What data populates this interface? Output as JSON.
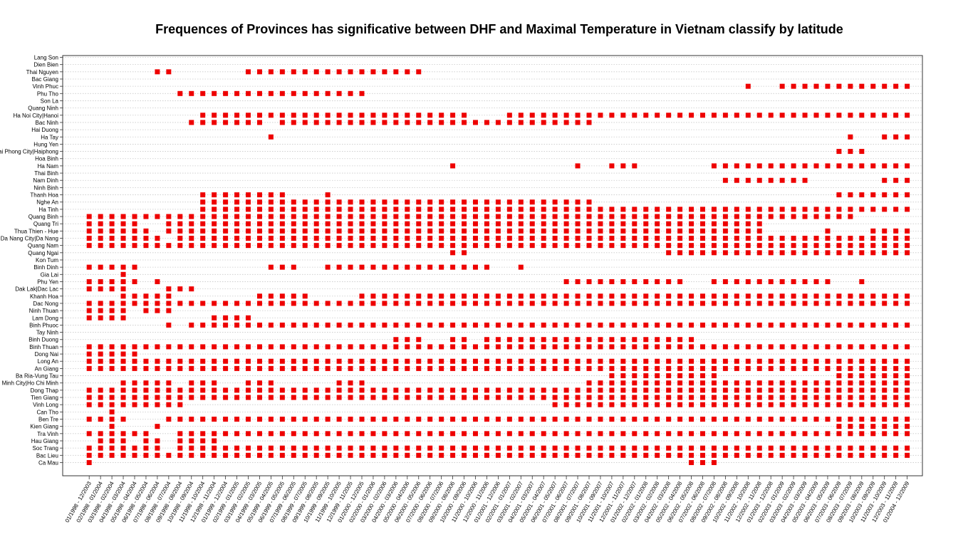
{
  "chart_data": {
    "type": "scatter",
    "title": "Frequences of Provinces has significative between DHF and Maximal Temperature in Vietnam classify by latitude",
    "xlabel": "",
    "ylabel": "",
    "marker_color": "#ee0000",
    "grid": "horizontal dotted",
    "provinces": [
      "Lang Son",
      "Dien Bien",
      "Thai Nguyen",
      "Bac Giang",
      "Vinh Phuc",
      "Phu Tho",
      "Son La",
      "Quang Ninh",
      "Ha Noi City|Hanoi",
      "Bac Ninh",
      "Hai Duong",
      "Ha Tay",
      "Hung Yen",
      "Hai Phong City|Haiphong",
      "Hoa Binh",
      "Ha Nam",
      "Thai Binh",
      "Nam Dinh",
      "Ninh Binh",
      "Thanh Hoa",
      "Nghe An",
      "Ha Tinh",
      "Quang Binh",
      "Quang Tri",
      "Thua Thien - Hue",
      "Da Nang City|Da Nang",
      "Quang Nam",
      "Quang Ngai",
      "Kon Tum",
      "Binh Dinh",
      "Gia Lai",
      "Phu Yen",
      "Dak Lak|Dac Lac",
      "Khanh Hoa",
      "Dac Nong",
      "Ninh Thuan",
      "Lam Dong",
      "Binh Phuoc",
      "Tay Ninh",
      "Binh Duong",
      "Binh Thuan",
      "Dong Nai",
      "Long An",
      "An Giang",
      "Ba Ria-Vung Tau",
      "Ho Chi Minh City|Ho Chi Minh",
      "Dong Thap",
      "Tien Giang",
      "Vinh Long",
      "Can Tho",
      "Ben Tre",
      "Kien Giang",
      "Tra Vinh",
      "Hau Giang",
      "Soc Trang",
      "Bac Lieu",
      "Ca Mau"
    ],
    "periods": [
      "01/1998 - 12/2003",
      "02/1998 - 01/2004",
      "03/1998 - 02/2004",
      "04/1998 - 03/2004",
      "05/1998 - 04/2004",
      "06/1998 - 05/2004",
      "07/1998 - 06/2004",
      "08/1998 - 07/2004",
      "09/1998 - 08/2004",
      "10/1998 - 09/2004",
      "11/1998 - 10/2004",
      "12/1998 - 11/2004",
      "01/1999 - 12/2004",
      "02/1999 - 01/2005",
      "03/1999 - 02/2005",
      "04/1999 - 03/2005",
      "05/1999 - 04/2005",
      "06/1999 - 05/2005",
      "07/1999 - 06/2005",
      "08/1999 - 07/2005",
      "09/1999 - 08/2005",
      "10/1999 - 09/2005",
      "11/1999 - 10/2005",
      "12/1999 - 11/2005",
      "01/2000 - 12/2005",
      "02/2000 - 01/2006",
      "03/2000 - 02/2006",
      "04/2000 - 03/2006",
      "05/2000 - 04/2006",
      "06/2000 - 05/2006",
      "07/2000 - 06/2006",
      "08/2000 - 07/2006",
      "09/2000 - 08/2006",
      "10/2000 - 09/2006",
      "11/2000 - 10/2006",
      "12/2000 - 11/2006",
      "01/2001 - 12/2006",
      "02/2001 - 01/2007",
      "03/2001 - 02/2007",
      "04/2001 - 03/2007",
      "05/2001 - 04/2007",
      "06/2001 - 05/2007",
      "07/2001 - 06/2007",
      "08/2001 - 07/2007",
      "09/2001 - 08/2007",
      "10/2001 - 09/2007",
      "11/2001 - 10/2007",
      "12/2001 - 11/2007",
      "01/2002 - 12/2007",
      "02/2002 - 01/2008",
      "03/2002 - 02/2008",
      "04/2002 - 03/2008",
      "05/2002 - 04/2008",
      "06/2002 - 05/2008",
      "07/2002 - 06/2008",
      "08/2002 - 07/2008",
      "09/2002 - 08/2008",
      "10/2002 - 09/2008",
      "11/2002 - 10/2008",
      "12/2002 - 11/2008",
      "01/2003 - 12/2008",
      "02/2003 - 01/2009",
      "03/2003 - 02/2009",
      "04/2003 - 03/2009",
      "05/2003 - 04/2009",
      "06/2003 - 05/2009",
      "07/2003 - 06/2009",
      "08/2003 - 07/2009",
      "09/2003 - 08/2009",
      "10/2003 - 09/2009",
      "11/2003 - 10/2009",
      "12/2003 - 11/2009",
      "01/2004 - 12/2009"
    ],
    "significant": {
      "Thai Nguyen": [
        "6-7",
        "14-29"
      ],
      "Vinh Phuc": [
        "58",
        "61-72"
      ],
      "Phu Tho": [
        "8-24"
      ],
      "Ha Noi City|Hanoi": [
        "10-33",
        "37-72"
      ],
      "Bac Ninh": [
        "9-15",
        "17-44"
      ],
      "Ha Tay": [
        "16",
        "67",
        "70-72"
      ],
      "Hai Phong City|Haiphong": [
        "66-68"
      ],
      "Ha Nam": [
        "32",
        "43",
        "46-48",
        "55-72"
      ],
      "Nam Dinh": [
        "56-63",
        "70-72"
      ],
      "Thanh Hoa": [
        "10-17",
        "21",
        "66-72"
      ],
      "Nghe An": [
        "10-44"
      ],
      "Ha Tinh": [
        "10-72"
      ],
      "Quang Binh": [
        "0-67"
      ],
      "Quang Tri": [
        "0-4",
        "7-59"
      ],
      "Thua Thien - Hue": [
        "0-5",
        "7-59",
        "65",
        "69-72"
      ],
      "Da Nang City|Da Nang": [
        "0-6",
        "8-72"
      ],
      "Quang Nam": [
        "0-72"
      ],
      "Quang Ngai": [
        "32-33",
        "51-72"
      ],
      "Binh Dinh": [
        "0-4",
        "16-18",
        "21-35",
        "38"
      ],
      "Gia Lai": [
        "3"
      ],
      "Phu Yen": [
        "0-4",
        "6",
        "42-52",
        "55-65",
        "68"
      ],
      "Dak Lak|Dac Lac": [
        "0-3",
        "7-9"
      ],
      "Khanh Hoa": [
        "3-7",
        "15-19",
        "24-72"
      ],
      "Dac Nong": [
        "0-72"
      ],
      "Ninh Thuan": [
        "0-3",
        "5-7"
      ],
      "Lam Dong": [
        "0-3",
        "11-14"
      ],
      "Binh Phuoc": [
        "7",
        "9-72"
      ],
      "Binh Duong": [
        "27-29",
        "32-33",
        "35-53"
      ],
      "Binh Thuan": [
        "0-72"
      ],
      "Dong Nai": [
        "0-4"
      ],
      "Long An": [
        "0-72"
      ],
      "An Giang": [
        "0-72"
      ],
      "Ba Ria-Vung Tau": [
        "46-55",
        "66-72"
      ],
      "Ho Chi Minh City|Ho Chi Minh": [
        "3-7",
        "9-11",
        "14-16",
        "22-24",
        "44-72"
      ],
      "Dong Thap": [
        "0-72"
      ],
      "Tien Giang": [
        "0-72"
      ],
      "Vinh Long": [
        "0-8",
        "41-72"
      ],
      "Can Tho": [
        "2"
      ],
      "Ben Tre": [
        "0-3",
        "7-72"
      ],
      "Kien Giang": [
        "2",
        "6",
        "66-72"
      ],
      "Tra Vinh": [
        "0-5",
        "8-72"
      ],
      "Hau Giang": [
        "1-3",
        "5-6",
        "8-11"
      ],
      "Soc Trang": [
        "0-6",
        "8-72"
      ],
      "Bac Lieu": [
        "0-72"
      ],
      "Ca Mau": [
        "0",
        "53-55"
      ]
    }
  }
}
